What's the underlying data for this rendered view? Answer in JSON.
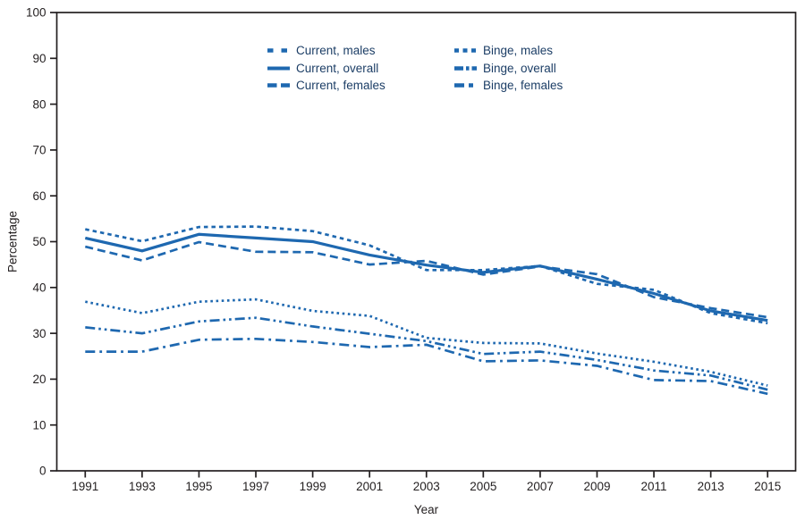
{
  "figure": {
    "line_color": "#1e68b0",
    "axis_color": "#231f20",
    "tick_label_color": "#231f20",
    "legend_text_color": "#1c3e66",
    "background": "#ffffff"
  },
  "chart_data": {
    "type": "line",
    "title": "",
    "xlabel": "Year",
    "ylabel": "Percentage",
    "x": [
      1991,
      1993,
      1995,
      1997,
      1999,
      2001,
      2003,
      2005,
      2007,
      2009,
      2011,
      2013,
      2015
    ],
    "xticks": [
      1991,
      1993,
      1995,
      1997,
      1999,
      2001,
      2003,
      2005,
      2007,
      2009,
      2011,
      2013,
      2015
    ],
    "yticks": [
      0,
      10,
      20,
      30,
      40,
      50,
      60,
      70,
      80,
      90,
      100
    ],
    "xlim": [
      1990,
      2016
    ],
    "ylim": [
      0,
      100
    ],
    "grid": false,
    "legend_position": "top-center-two-columns",
    "series": [
      {
        "name": "Current, males",
        "style": "short-dash",
        "values": [
          52.7,
          50.1,
          53.2,
          53.3,
          52.3,
          49.2,
          43.8,
          43.8,
          44.7,
          40.8,
          39.5,
          34.4,
          32.2
        ]
      },
      {
        "name": "Current, overall",
        "style": "solid",
        "values": [
          50.8,
          48.0,
          51.6,
          50.8,
          50.0,
          47.1,
          44.9,
          43.3,
          44.7,
          41.8,
          38.7,
          34.9,
          32.8
        ]
      },
      {
        "name": "Current, females",
        "style": "long-dash",
        "values": [
          48.9,
          45.9,
          49.9,
          47.8,
          47.7,
          45.0,
          45.8,
          42.8,
          44.6,
          42.9,
          37.9,
          35.5,
          33.5
        ]
      },
      {
        "name": "Binge, males",
        "style": "dotted",
        "values": [
          36.9,
          34.4,
          36.9,
          37.4,
          34.9,
          33.8,
          29.0,
          27.9,
          27.8,
          25.6,
          23.8,
          21.6,
          18.6
        ]
      },
      {
        "name": "Binge, overall",
        "style": "dash-dot-dot",
        "values": [
          31.3,
          30.0,
          32.6,
          33.4,
          31.5,
          29.9,
          28.3,
          25.5,
          26.0,
          24.2,
          21.9,
          20.8,
          17.7
        ]
      },
      {
        "name": "Binge, females",
        "style": "dash-dot",
        "values": [
          26.0,
          26.0,
          28.6,
          28.8,
          28.1,
          27.0,
          27.5,
          23.9,
          24.1,
          22.9,
          19.8,
          19.6,
          16.8
        ]
      }
    ]
  }
}
